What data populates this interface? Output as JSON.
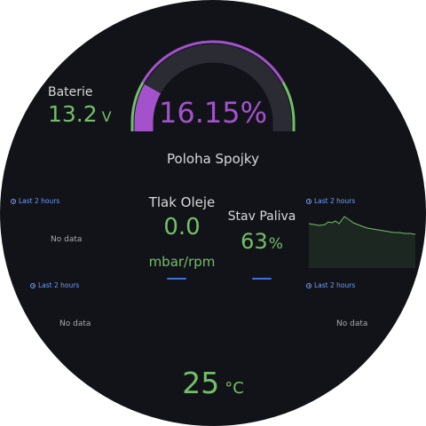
{
  "colors": {
    "background": "#121318",
    "gauge_fill": "#a352cc",
    "gauge_track": "#2a2b33",
    "threshold_green": "#73bf69",
    "value_green": "#73bf69",
    "time_label_blue": "#6e9fff"
  },
  "clutch": {
    "title": "Poloha Spojky",
    "value": "16.15%",
    "fraction": 0.1615
  },
  "battery": {
    "title": "Baterie",
    "value": "13.2",
    "unit": "V"
  },
  "oil": {
    "title": "Tlak Oleje",
    "value": "0.0",
    "unit": "mbar/rpm"
  },
  "fuel": {
    "title": "Stav Paliva",
    "value": "63",
    "unit": "%"
  },
  "temperature": {
    "value": "25",
    "unit": "°C"
  },
  "panels": {
    "top_left": {
      "time_range": "Last 2 hours",
      "message": "No data"
    },
    "top_right": {
      "time_range": "Last 2 hours"
    },
    "bottom_left": {
      "time_range": "Last 2 hours",
      "message": "No data"
    },
    "bottom_right": {
      "time_range": "Last 2 hours",
      "message": "No data"
    }
  },
  "icons": {
    "time_range": "clock-icon"
  }
}
